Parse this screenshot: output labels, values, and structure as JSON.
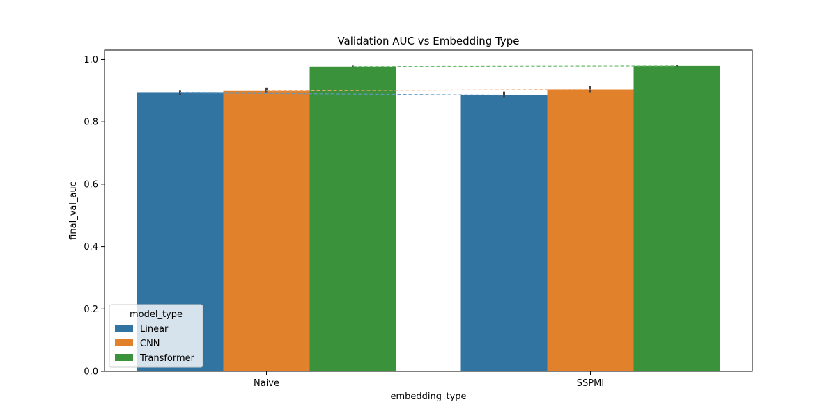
{
  "chart_data": {
    "type": "bar",
    "title": "Validation AUC vs Embedding Type",
    "xlabel": "embedding_type",
    "ylabel": "final_val_auc",
    "categories": [
      "Naive",
      "SSPMI"
    ],
    "ylim": [
      0,
      1.03
    ],
    "yticks": [
      0.0,
      0.2,
      0.4,
      0.6,
      0.8,
      1.0
    ],
    "ytick_labels": [
      "0.0",
      "0.2",
      "0.4",
      "0.6",
      "0.8",
      "1.0"
    ],
    "grid": false,
    "legend": {
      "title": "model_type",
      "placement": "lower-left"
    },
    "series": [
      {
        "name": "Linear",
        "color": "#3274a1",
        "line_color": "#5f9ac4",
        "values": [
          0.893,
          0.886
        ],
        "errors": [
          [
            0.887,
            0.9
          ],
          [
            0.877,
            0.897
          ]
        ]
      },
      {
        "name": "CNN",
        "color": "#e1812c",
        "line_color": "#f0aa72",
        "values": [
          0.899,
          0.904
        ],
        "errors": [
          [
            0.893,
            0.91
          ],
          [
            0.893,
            0.915
          ]
        ]
      },
      {
        "name": "Transformer",
        "color": "#3a923a",
        "line_color": "#6dbb6d",
        "values": [
          0.977,
          0.979
        ],
        "errors": [
          [
            0.975,
            0.98
          ],
          [
            0.977,
            0.982
          ]
        ]
      }
    ]
  }
}
